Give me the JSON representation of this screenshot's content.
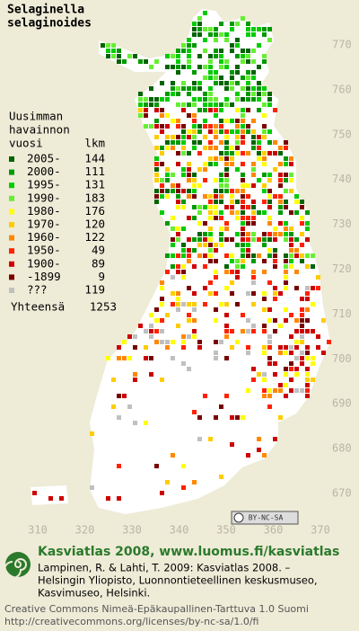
{
  "title": [
    "Selaginella",
    "selaginoides"
  ],
  "legend": {
    "heading": [
      "Uusimman",
      "havainnon"
    ],
    "col_year": "vuosi",
    "col_count": "lkm",
    "rows": [
      {
        "label": "2005-",
        "count": 144,
        "color": "#006400"
      },
      {
        "label": "2000-",
        "count": 111,
        "color": "#009a00"
      },
      {
        "label": "1995-",
        "count": 131,
        "color": "#00cc00"
      },
      {
        "label": "1990-",
        "count": 183,
        "color": "#66ee33"
      },
      {
        "label": "1980-",
        "count": 176,
        "color": "#ffff00"
      },
      {
        "label": "1970-",
        "count": 120,
        "color": "#ffcc00"
      },
      {
        "label": "1960-",
        "count": 122,
        "color": "#ff8800"
      },
      {
        "label": "1950-",
        "count": 49,
        "color": "#ff2200"
      },
      {
        "label": "1900-",
        "count": 89,
        "color": "#cc0000"
      },
      {
        "label": "-1899",
        "count": 9,
        "color": "#7a0000"
      },
      {
        "label": "???",
        "count": 119,
        "color": "#c0c0c0"
      }
    ],
    "total_label": "Yhteensä",
    "total": 1253
  },
  "map": {
    "y_labels": [
      770,
      760,
      750,
      740,
      730,
      720,
      710,
      700,
      690,
      680,
      670
    ],
    "x_labels": [
      310,
      320,
      330,
      340,
      350,
      360,
      370
    ]
  },
  "cc_badge": "BY-NC-SA",
  "footer": {
    "site": "Kasviatlas 2008, www.luomus.fi/kasviatlas",
    "citation": [
      "Lampinen, R. & Lahti, T. 2009: Kasviatlas 2008. –",
      "Helsingin Yliopisto, Luonnontieteellinen keskusmuseo,",
      "Kasvimuseo, Helsinki."
    ],
    "license": [
      "Creative Commons Nimeä-Epäkaupallinen-Tarttuva 1.0 Suomi",
      "http://creativecommons.org/licenses/by-nc-sa/1.0/fi"
    ]
  }
}
